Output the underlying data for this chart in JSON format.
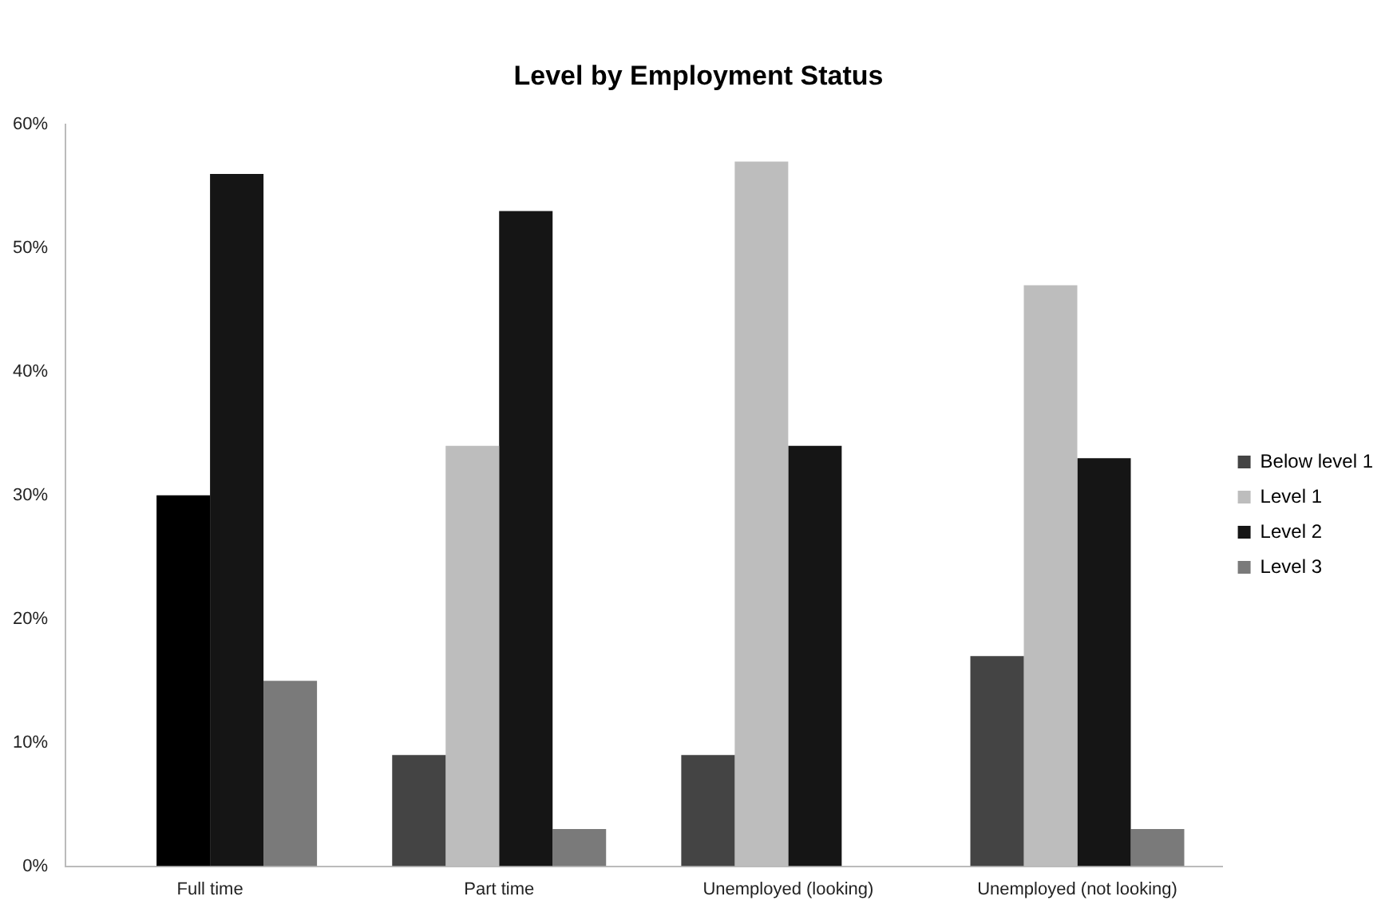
{
  "chart_data": {
    "type": "bar",
    "title": "Level by Employment Status",
    "categories": [
      "Full time",
      "Part time",
      "Unemployed (looking)",
      "Unemployed (not looking)"
    ],
    "series": [
      {
        "name": "Below level 1",
        "color": "#444444",
        "values": [
          null,
          9,
          9,
          17
        ]
      },
      {
        "name": "Level 1",
        "color": "#bdbdbd",
        "colors": [
          "#000000",
          "#bdbdbd",
          "#bdbdbd",
          "#bdbdbd"
        ],
        "values": [
          30,
          34,
          57,
          47
        ]
      },
      {
        "name": "Level 2",
        "color": "#151515",
        "values": [
          56,
          53,
          34,
          33
        ]
      },
      {
        "name": "Level 3",
        "color": "#7a7a7a",
        "values": [
          15,
          3,
          null,
          3
        ]
      }
    ],
    "ylim": [
      0,
      60
    ],
    "yticks": [
      {
        "value": 0,
        "label": "0%"
      },
      {
        "value": 10,
        "label": "10%"
      },
      {
        "value": 20,
        "label": "20%"
      },
      {
        "value": 30,
        "label": "30%"
      },
      {
        "value": 40,
        "label": "40%"
      },
      {
        "value": 50,
        "label": "50%"
      },
      {
        "value": 60,
        "label": "60%"
      }
    ],
    "grid": false,
    "legend": "right"
  }
}
